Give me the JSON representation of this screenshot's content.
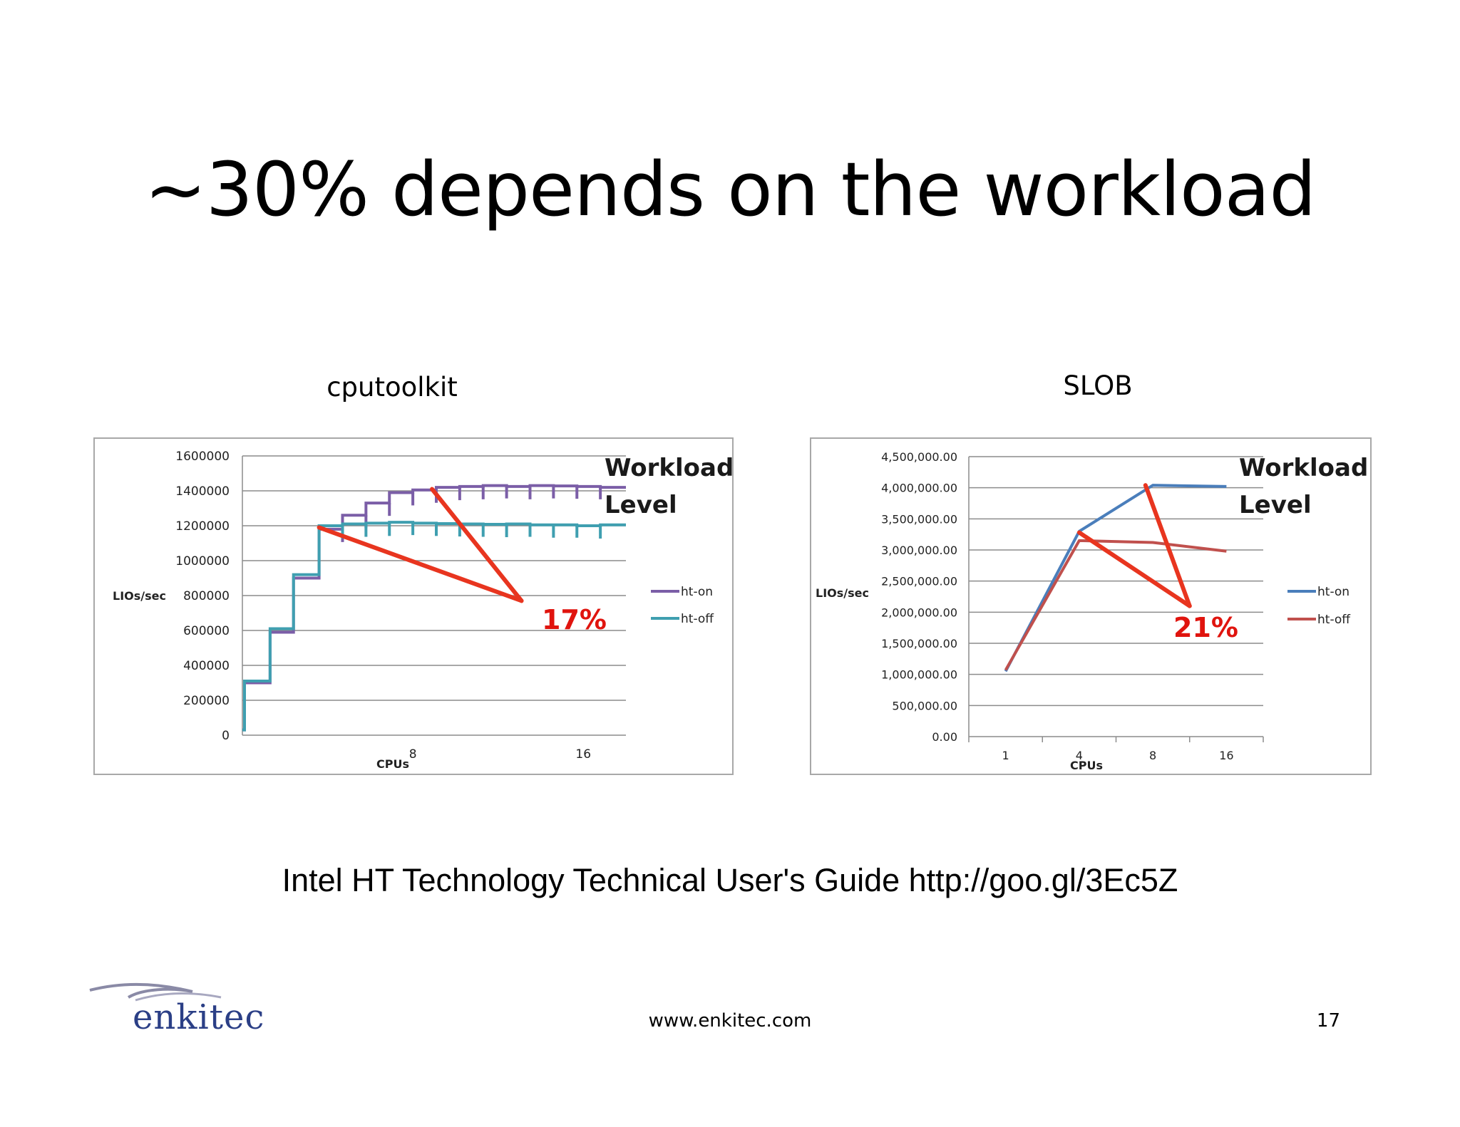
{
  "slide": {
    "title": "~30% depends on the workload",
    "reference": "Intel HT Technology Technical User's Guide  http://goo.gl/3Ec5Z",
    "footer_url": "www.enkitec.com",
    "page_number": "17",
    "logo_text": "enkitec"
  },
  "chart_data": [
    {
      "caption": "cputoolkit",
      "type": "line",
      "xlabel": "CPUs",
      "ylabel": "LIOs/sec",
      "xlim": [
        0,
        18
      ],
      "ylim": [
        0,
        1600000
      ],
      "x_ticks": [
        8,
        16
      ],
      "y_ticks": [
        {
          "v": 0,
          "label": "0"
        },
        {
          "v": 200000,
          "label": "200000"
        },
        {
          "v": 400000,
          "label": "400000"
        },
        {
          "v": 600000,
          "label": "600000"
        },
        {
          "v": 800000,
          "label": "800000"
        },
        {
          "v": 1000000,
          "label": "1000000"
        },
        {
          "v": 1200000,
          "label": "1200000"
        },
        {
          "v": 1400000,
          "label": "1400000"
        },
        {
          "v": 1600000,
          "label": "1600000"
        }
      ],
      "grid": true,
      "legend": "right",
      "series": [
        {
          "name": "ht-on",
          "color": "#7b5ea7",
          "x": [
            0,
            0.1,
            0.1,
            1.3,
            1.3,
            2.4,
            2.4,
            3.6,
            3.6,
            4.7,
            4.7,
            5.8,
            5.8,
            6.9,
            6.9,
            8,
            8,
            9.1,
            9.1,
            10.2,
            10.2,
            11.3,
            11.3,
            12.4,
            12.4,
            13.5,
            13.5,
            14.6,
            14.6,
            15.7,
            15.7,
            16.8,
            16.8,
            18
          ],
          "y": [
            30000,
            30000,
            300000,
            300000,
            590000,
            590000,
            900000,
            900000,
            1180000,
            1180000,
            1260000,
            1260000,
            1330000,
            1330000,
            1390000,
            1390000,
            1405000,
            1405000,
            1420000,
            1420000,
            1425000,
            1425000,
            1430000,
            1430000,
            1425000,
            1425000,
            1430000,
            1430000,
            1428000,
            1428000,
            1425000,
            1425000,
            1420000,
            1420000
          ]
        },
        {
          "name": "ht-off",
          "color": "#3f9fb0",
          "x": [
            0,
            0.1,
            0.1,
            1.3,
            1.3,
            2.4,
            2.4,
            3.6,
            3.6,
            4.7,
            4.7,
            5.8,
            5.8,
            6.9,
            6.9,
            8,
            8,
            9.1,
            9.1,
            10.2,
            10.2,
            11.3,
            11.3,
            12.4,
            12.4,
            13.5,
            13.5,
            14.6,
            14.6,
            15.7,
            15.7,
            16.8,
            16.8,
            18
          ],
          "y": [
            30000,
            30000,
            310000,
            310000,
            610000,
            610000,
            920000,
            920000,
            1200000,
            1200000,
            1210000,
            1210000,
            1215000,
            1215000,
            1220000,
            1220000,
            1215000,
            1215000,
            1212000,
            1212000,
            1210000,
            1210000,
            1208000,
            1208000,
            1210000,
            1210000,
            1205000,
            1205000,
            1205000,
            1205000,
            1200000,
            1200000,
            1205000,
            1205000
          ]
        }
      ],
      "annotation_lines": [
        {
          "x1": 3.6,
          "y1": 1190000,
          "x2": 13.1,
          "y2": 770000
        },
        {
          "x1": 8.9,
          "y1": 1410000,
          "x2": 13.1,
          "y2": 770000
        }
      ],
      "annotation_color": "#e8351f",
      "annotation_label": "17%",
      "annotation_label_color": "#e0140e",
      "overlay_text": [
        "Workload",
        "Level"
      ]
    },
    {
      "caption": "SLOB",
      "type": "line",
      "xlabel": "CPUs",
      "ylabel": "LIOs/sec",
      "ylim": [
        0,
        4500000
      ],
      "categories": [
        "1",
        "4",
        "8",
        "16"
      ],
      "y_ticks": [
        {
          "v": 0,
          "label": "0.00"
        },
        {
          "v": 500000,
          "label": "500,000.00"
        },
        {
          "v": 1000000,
          "label": "1,000,000.00"
        },
        {
          "v": 1500000,
          "label": "1,500,000.00"
        },
        {
          "v": 2000000,
          "label": "2,000,000.00"
        },
        {
          "v": 2500000,
          "label": "2,500,000.00"
        },
        {
          "v": 3000000,
          "label": "3,000,000.00"
        },
        {
          "v": 3500000,
          "label": "3,500,000.00"
        },
        {
          "v": 4000000,
          "label": "4,000,000.00"
        },
        {
          "v": 4500000,
          "label": "4,500,000.00"
        }
      ],
      "grid": true,
      "legend": "right",
      "series": [
        {
          "name": "ht-on",
          "color": "#4a7ebb",
          "values": [
            1050000,
            3300000,
            4040000,
            4020000
          ]
        },
        {
          "name": "ht-off",
          "color": "#c0504d",
          "values": [
            1070000,
            3150000,
            3120000,
            2980000
          ]
        }
      ],
      "annotation_lines": [
        {
          "x1": 1.0,
          "y1": 3280000,
          "x2": 2.5,
          "y2": 2100000
        },
        {
          "x1": 1.9,
          "y1": 4040000,
          "x2": 2.5,
          "y2": 2100000
        }
      ],
      "annotation_color": "#e8351f",
      "annotation_label": "21%",
      "annotation_label_color": "#e0140e",
      "overlay_text": [
        "Workload",
        "Level"
      ]
    }
  ]
}
